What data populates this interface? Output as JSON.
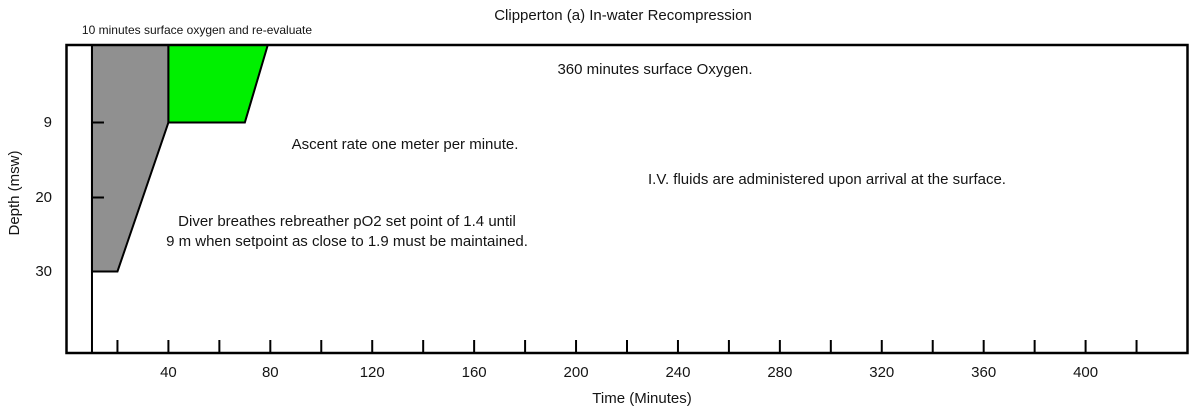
{
  "chart_data": {
    "type": "area",
    "title": "Clipperton (a) In-water Recompression",
    "xlabel": "Time (Minutes)",
    "ylabel": "Depth (msw)",
    "x_axis": {
      "min": 0,
      "max": 440,
      "unit": "minutes",
      "tick_step": 20,
      "ticks": [
        20,
        40,
        60,
        80,
        100,
        120,
        140,
        160,
        180,
        200,
        220,
        240,
        260,
        280,
        300,
        320,
        340,
        360,
        380,
        400,
        420
      ],
      "labeled_ticks": [
        40,
        80,
        120,
        160,
        200,
        240,
        280,
        320,
        360,
        400
      ]
    },
    "y_axis": {
      "min": 0,
      "max": 42,
      "unit": "msw",
      "inverted": true,
      "tick_marks": [
        9,
        20
      ],
      "labels": [
        9,
        20,
        30
      ]
    },
    "surface_oxygen_interval": {
      "time_start": 0,
      "time_end": 10,
      "divider_time": 10
    },
    "series": [
      {
        "name": "rebreather-po2-1.4-phase",
        "fill": "#909090",
        "stroke": "#000000",
        "points_time_depth": [
          [
            10,
            0
          ],
          [
            40,
            0
          ],
          [
            40,
            9
          ],
          [
            20,
            30
          ],
          [
            10,
            30
          ]
        ]
      },
      {
        "name": "oxygen-9msw-phase",
        "fill": "#00f000",
        "stroke": "#000000",
        "points_time_depth": [
          [
            40,
            0
          ],
          [
            79,
            0
          ],
          [
            70,
            9
          ],
          [
            40,
            9
          ]
        ]
      }
    ],
    "annotations": {
      "surface_interval": "10 minutes surface oxygen and re-evaluate",
      "surface_oxygen": "360 minutes surface Oxygen.",
      "ascent_rate": "Ascent rate one meter per minute.",
      "iv_fluids": "I.V. fluids are administered upon arrival at the surface.",
      "rebreather_line1": "Diver breathes rebreather pO2 set point of 1.4 until",
      "rebreather_line2": "9 m when setpoint as close to 1.9 must be maintained."
    },
    "colors": {
      "profile_gray": "#909090",
      "oxygen_green": "#00f000",
      "axis_black": "#000000",
      "background": "#ffffff"
    }
  }
}
